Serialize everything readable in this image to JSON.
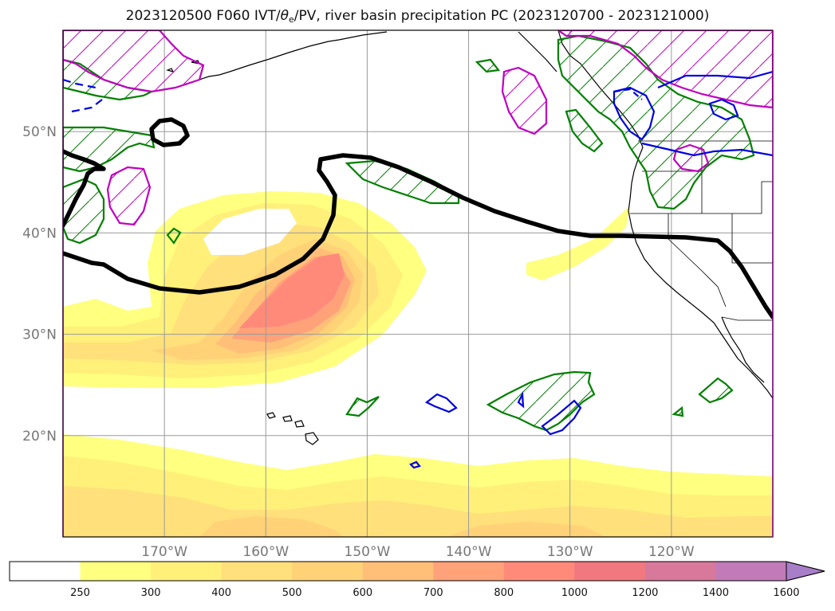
{
  "title": {
    "prefix": "2023120500 F060 IVT/",
    "theta": "θ",
    "theta_sub": "e",
    "suffix": "/PV, river basin precipitation PC (2023120700 - 2023121000)"
  },
  "map": {
    "lon_range": [
      -180,
      -110
    ],
    "lat_range": [
      10,
      60
    ],
    "lon_ticks": [
      {
        "lon": -170,
        "label": "170°W"
      },
      {
        "lon": -160,
        "label": "160°W"
      },
      {
        "lon": -150,
        "label": "150°W"
      },
      {
        "lon": -140,
        "label": "140°W"
      },
      {
        "lon": -130,
        "label": "130°W"
      },
      {
        "lon": -120,
        "label": "120°W"
      }
    ],
    "lat_ticks": [
      {
        "lat": 50,
        "label": "50°N"
      },
      {
        "lat": 40,
        "label": "40°N"
      },
      {
        "lat": 30,
        "label": "30°N"
      },
      {
        "lat": 20,
        "label": "20°N"
      }
    ],
    "grid": true
  },
  "colorbar": {
    "extend": "max",
    "levels": [
      {
        "label": "250",
        "color": "#ffffff"
      },
      {
        "label": "300",
        "color": "#ffff80"
      },
      {
        "label": "400",
        "color": "#fff07a"
      },
      {
        "label": "500",
        "color": "#ffe07a"
      },
      {
        "label": "600",
        "color": "#ffd278"
      },
      {
        "label": "700",
        "color": "#ffbf78"
      },
      {
        "label": "800",
        "color": "#ffa27a"
      },
      {
        "label": "1000",
        "color": "#ff8a7a"
      },
      {
        "label": "1200",
        "color": "#f0787e"
      },
      {
        "label": "1400",
        "color": "#d8789a"
      },
      {
        "label": "1600",
        "color": "#c07bb8"
      }
    ],
    "last_label": "1600",
    "extend_color": "#a87ec8"
  },
  "colors": {
    "pv_contour": "#000000",
    "precip_green": "#008000",
    "precip_magenta": "#c000c0",
    "precip_blue": "#0000e0",
    "coastline": "#000000"
  }
}
